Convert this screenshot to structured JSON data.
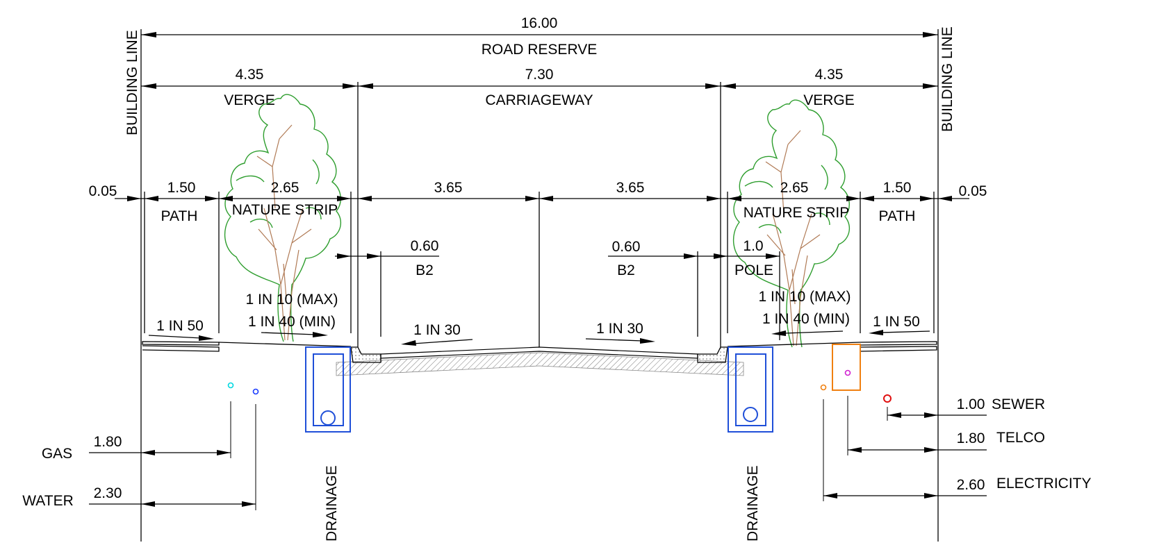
{
  "dimensions": {
    "road_reserve_width": "16.00",
    "road_reserve_label": "ROAD RESERVE",
    "left_verge_width": "4.35",
    "left_verge_label": "VERGE",
    "carriageway_width": "7.30",
    "carriageway_label": "CARRIAGEWAY",
    "right_verge_width": "4.35",
    "right_verge_label": "VERGE",
    "left_offset": "0.05",
    "left_path_width": "1.50",
    "left_path_label": "PATH",
    "left_nature_width": "2.65",
    "left_nature_label": "NATURE STRIP",
    "lane_left_width": "3.65",
    "lane_right_width": "3.65",
    "right_nature_width": "2.65",
    "right_nature_label": "NATURE STRIP",
    "right_path_width": "1.50",
    "right_path_label": "PATH",
    "right_offset": "0.05",
    "left_kerb_width": "0.60",
    "left_kerb_label": "B2",
    "right_kerb_width": "0.60",
    "right_kerb_label": "B2",
    "pole_offset": "1.0",
    "pole_label": "POLE"
  },
  "building_line_label": "BUILDING LINE",
  "grades": {
    "left_path": "1 IN  50",
    "left_nature_max": "1 IN  10 (MAX)",
    "left_nature_min": "1 IN 40 (MIN)",
    "left_carriageway": "1 IN 30",
    "right_carriageway": "1 IN 30",
    "right_nature_max": "1 IN  10 (MAX)",
    "right_nature_min": "1 IN 40 (MIN)",
    "right_path": "1 IN  50"
  },
  "services": {
    "gas": {
      "label": "GAS",
      "offset": "1.80",
      "color": "#00d8e0"
    },
    "water": {
      "label": "WATER",
      "offset": "2.30",
      "color": "#1a3cff"
    },
    "sewer": {
      "label": "SEWER",
      "offset": "1.00",
      "color": "#e01010"
    },
    "telco": {
      "label": "TELCO",
      "offset": "1.80",
      "color": "#d020d0"
    },
    "electricity": {
      "label": "ELECTRICITY",
      "offset": "2.60",
      "color": "#f08010"
    }
  },
  "drainage": {
    "left_label": "DRAINAGE",
    "right_label": "DRAINAGE",
    "color": "#1f4fd8"
  },
  "tree_colors": {
    "canopy": "#2f9e2f",
    "trunk": "#b07a55"
  }
}
